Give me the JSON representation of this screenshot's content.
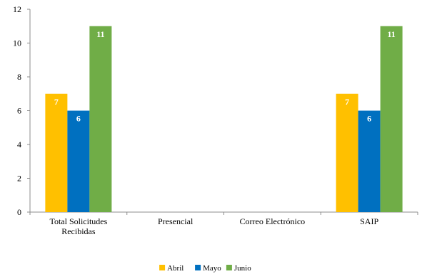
{
  "chart_data": {
    "type": "bar",
    "categories": [
      [
        "Total Solicitudes",
        "Recibidas"
      ],
      [
        "Presencial"
      ],
      [
        "Correo Electrónico"
      ],
      [
        "SAIP"
      ]
    ],
    "series": [
      {
        "name": "Abril",
        "color": "#FFC000",
        "values": [
          7,
          null,
          null,
          7
        ]
      },
      {
        "name": "Mayo",
        "color": "#0070C0",
        "values": [
          6,
          null,
          null,
          6
        ]
      },
      {
        "name": "Junio",
        "color": "#70AD47",
        "values": [
          11,
          null,
          null,
          11
        ]
      }
    ],
    "ylim": [
      0,
      12
    ],
    "yticks": [
      0,
      2,
      4,
      6,
      8,
      10,
      12
    ],
    "grid": false,
    "legend_position": "bottom-center",
    "data_labels": true
  }
}
